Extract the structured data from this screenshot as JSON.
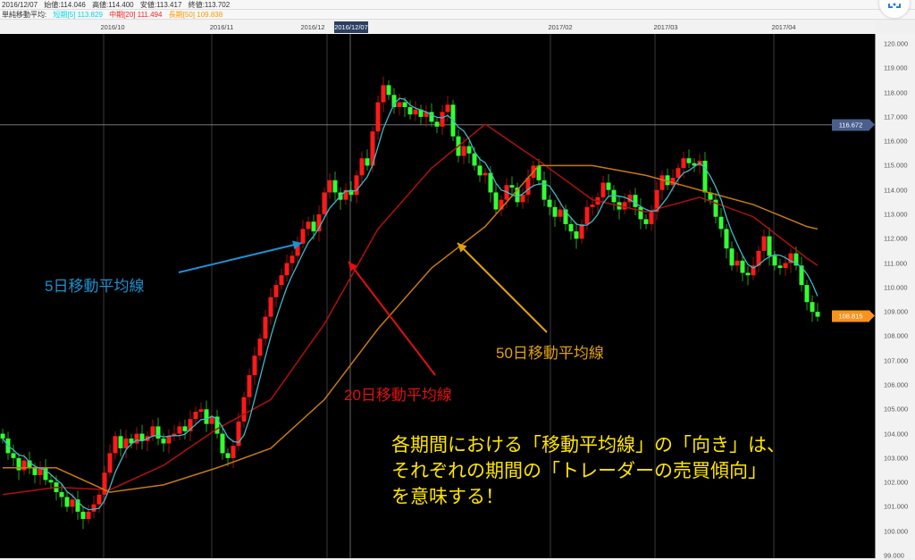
{
  "header": {
    "date": "2016/12/07",
    "open": "始値:114.046",
    "high": "高値:114.400",
    "low": "安値:113.417",
    "close": "終値:113.702",
    "ma_label": "単純移動平均:",
    "ma_short": "短期[5] 113.829",
    "ma_mid": "中期[20] 111.494",
    "ma_long": "長期[50] 109.838",
    "colors": {
      "short": "#00e5ff",
      "mid": "#ff2020",
      "long": "#ff9900"
    }
  },
  "toolbar": {
    "scan_icon": "scan-icon"
  },
  "chart_data": {
    "type": "candlestick",
    "x_tick_labels": [
      "2016/10",
      "2016/11",
      "2016/12",
      "2017/02",
      "2017/03",
      "2017/04"
    ],
    "crosshair": {
      "date_label": "2016/12/07",
      "price_label": "116.672",
      "price": 116.672
    },
    "current_price": {
      "label": "108.815",
      "price": 108.815
    },
    "ylim": [
      99,
      120
    ],
    "y_tick_labels": [
      "120.000",
      "119.000",
      "118.000",
      "117.000",
      "116.000",
      "115.000",
      "114.000",
      "113.000",
      "112.000",
      "111.000",
      "110.000",
      "109.000",
      "108.000",
      "107.000",
      "106.000",
      "105.000",
      "104.000",
      "103.000",
      "102.000",
      "101.000",
      "100.000",
      "99.000"
    ],
    "up_color": "#ff1a1a",
    "down_color": "#33ff33",
    "first_open": 104.0,
    "closes": [
      103.8,
      103.2,
      103.0,
      102.5,
      102.9,
      102.6,
      102.3,
      102.6,
      102.1,
      102.0,
      101.6,
      101.4,
      101.0,
      101.3,
      100.8,
      100.5,
      100.8,
      101.1,
      101.5,
      102.4,
      103.2,
      103.9,
      103.4,
      103.8,
      103.6,
      104.0,
      103.7,
      103.9,
      104.3,
      103.8,
      103.6,
      103.9,
      104.0,
      104.3,
      104.1,
      104.6,
      104.9,
      105.0,
      104.4,
      104.7,
      104.0,
      103.2,
      103.0,
      103.5,
      104.5,
      105.5,
      106.4,
      107.2,
      107.9,
      108.8,
      109.6,
      110.1,
      110.5,
      111.0,
      111.3,
      111.8,
      112.4,
      112.7,
      112.3,
      113.0,
      113.9,
      114.4,
      113.9,
      113.6,
      114.0,
      113.8,
      114.6,
      115.3,
      115.0,
      116.4,
      117.6,
      118.3,
      117.9,
      117.4,
      117.6,
      117.4,
      117.1,
      117.3,
      117.0,
      117.2,
      116.8,
      116.6,
      117.2,
      117.5,
      116.2,
      115.4,
      115.8,
      115.5,
      115.0,
      114.6,
      114.7,
      113.9,
      113.2,
      113.6,
      114.2,
      114.1,
      113.5,
      113.8,
      114.5,
      115.0,
      114.4,
      113.6,
      113.3,
      112.9,
      113.2,
      112.6,
      112.3,
      112.0,
      112.6,
      113.3,
      113.4,
      113.7,
      114.3,
      114.0,
      113.5,
      113.2,
      113.5,
      113.8,
      113.3,
      112.8,
      112.6,
      113.1,
      114.0,
      114.6,
      114.2,
      114.5,
      114.9,
      115.3,
      115.1,
      115.0,
      115.2,
      113.9,
      113.6,
      112.9,
      112.4,
      111.6,
      110.9,
      111.1,
      110.6,
      110.5,
      110.9,
      111.5,
      112.1,
      111.3,
      110.9,
      110.8,
      111.0,
      111.4,
      110.9,
      110.1,
      109.4,
      109.0,
      108.8
    ],
    "series": [
      {
        "name": "5日移動平均線",
        "period": 5,
        "color": "#3fb8c8"
      },
      {
        "name": "20日移動平均線",
        "period": 20,
        "color": "#b01010",
        "sample_every": 10,
        "values": [
          101.5,
          101.8,
          101.7,
          102.7,
          104.2,
          105.4,
          108.5,
          112.4,
          114.9,
          116.7,
          115.2,
          113.6,
          113.1,
          113.7,
          112.9,
          111.2,
          110.9
        ]
      },
      {
        "name": "50日移動平均線",
        "period": 50,
        "color": "#c87a10",
        "sample_every": 10,
        "values": [
          102.6,
          102.6,
          101.6,
          101.9,
          102.6,
          103.4,
          105.4,
          108.3,
          110.8,
          112.5,
          115.0,
          115.0,
          114.6,
          114.0,
          113.4,
          112.5,
          112.4
        ]
      }
    ]
  },
  "annotations": {
    "ma5": {
      "text": "5日移動平均線",
      "color": "#1e90d0"
    },
    "ma20": {
      "text": "20日移動平均線",
      "color": "#e01010"
    },
    "ma50": {
      "text": "50日移動平均線",
      "color": "#e0a010"
    },
    "message": [
      "各期間における「移動平均線」の「向き」は、",
      "それぞれの期間の「トレーダーの売買傾向」",
      "を意味する！"
    ]
  }
}
